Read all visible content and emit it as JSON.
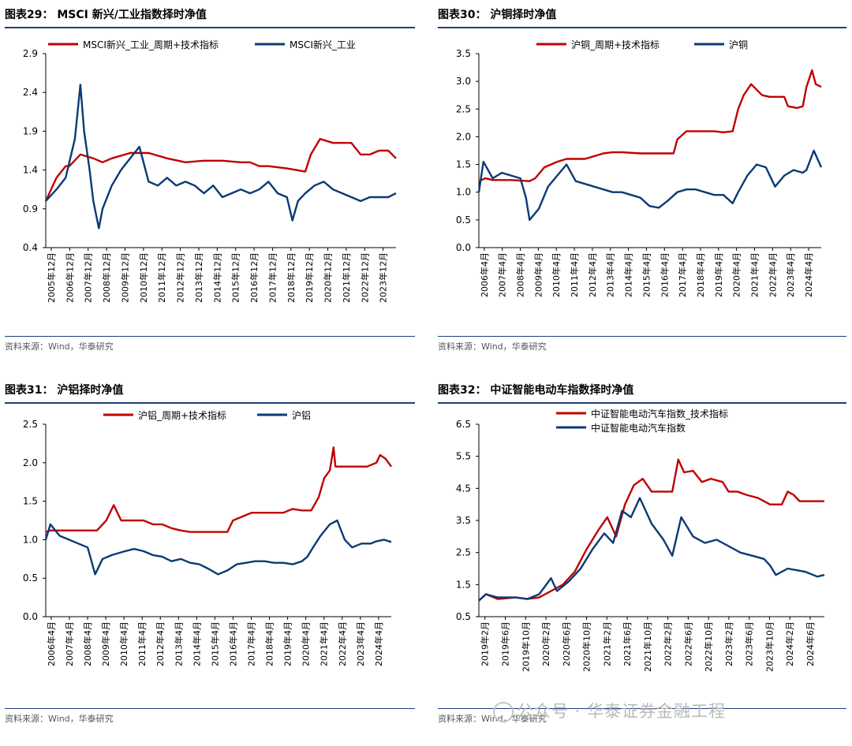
{
  "colors": {
    "red": "#c00000",
    "blue": "#0b3a75",
    "rule": "#1f3f7a"
  },
  "source_text": "资料来源：Wind，华泰研究",
  "watermark": "公众号 · 华泰证券金融工程",
  "chart_data": [
    {
      "type": "line",
      "title": "图表29：  MSCI 新兴/工业指数择时净值",
      "ylim": [
        0.4,
        2.9
      ],
      "yticks": [
        0.4,
        0.9,
        1.4,
        1.9,
        2.4,
        2.9
      ],
      "ytick_labels": [
        "0.4",
        "0.9",
        "1.4",
        "1.9",
        "2.4",
        "2.9"
      ],
      "xlim": [
        2005.92,
        2024.92
      ],
      "x_tick_labels": [
        "2005年12月",
        "2006年12月",
        "2007年12月",
        "2008年12月",
        "2009年12月",
        "2010年12月",
        "2011年12月",
        "2012年12月",
        "2013年12月",
        "2014年12月",
        "2015年12月",
        "2016年12月",
        "2017年12月",
        "2018年12月",
        "2019年12月",
        "2020年12月",
        "2021年12月",
        "2022年12月",
        "2023年12月"
      ],
      "legend": "top",
      "series": [
        {
          "name": "MSCI新兴_工业_周期+技术指标",
          "color": "red",
          "x": [
            2005.92,
            2006.5,
            2007.0,
            2007.2,
            2007.6,
            2007.8,
            2008.5,
            2009.0,
            2009.5,
            2010.5,
            2011.5,
            2012.5,
            2013.5,
            2014.5,
            2015.5,
            2016.5,
            2017.0,
            2017.5,
            2018.0,
            2019.0,
            2019.5,
            2020.0,
            2020.3,
            2020.8,
            2021.5,
            2022.5,
            2023.0,
            2023.5,
            2024.0,
            2024.5,
            2024.92
          ],
          "y": [
            1.0,
            1.3,
            1.45,
            1.45,
            1.55,
            1.6,
            1.55,
            1.5,
            1.55,
            1.62,
            1.62,
            1.55,
            1.5,
            1.52,
            1.52,
            1.5,
            1.5,
            1.45,
            1.45,
            1.42,
            1.4,
            1.38,
            1.6,
            1.8,
            1.75,
            1.75,
            1.6,
            1.6,
            1.65,
            1.65,
            1.55
          ]
        },
        {
          "name": "MSCI新兴_工业",
          "color": "blue",
          "x": [
            2005.92,
            2006.5,
            2007.0,
            2007.5,
            2007.8,
            2008.0,
            2008.3,
            2008.5,
            2008.8,
            2009.0,
            2009.5,
            2010.0,
            2010.5,
            2011.0,
            2011.5,
            2012.0,
            2012.5,
            2013.0,
            2013.5,
            2014.0,
            2014.5,
            2015.0,
            2015.5,
            2016.0,
            2016.5,
            2017.0,
            2017.5,
            2018.0,
            2018.5,
            2019.0,
            2019.3,
            2019.6,
            2020.0,
            2020.5,
            2021.0,
            2021.5,
            2022.0,
            2022.5,
            2023.0,
            2023.5,
            2024.0,
            2024.5,
            2024.92
          ],
          "y": [
            1.0,
            1.15,
            1.3,
            1.8,
            2.5,
            1.9,
            1.4,
            1.0,
            0.65,
            0.9,
            1.2,
            1.4,
            1.55,
            1.7,
            1.25,
            1.2,
            1.3,
            1.2,
            1.25,
            1.2,
            1.1,
            1.2,
            1.05,
            1.1,
            1.15,
            1.1,
            1.15,
            1.25,
            1.1,
            1.05,
            0.75,
            1.0,
            1.1,
            1.2,
            1.25,
            1.15,
            1.1,
            1.05,
            1.0,
            1.05,
            1.05,
            1.05,
            1.1
          ]
        }
      ]
    },
    {
      "type": "line",
      "title": "图表30：  沪铜择时净值",
      "ylim": [
        0.0,
        3.5
      ],
      "yticks": [
        0.0,
        0.5,
        1.0,
        1.5,
        2.0,
        2.5,
        3.0,
        3.5
      ],
      "ytick_labels": [
        "0.0",
        "0.5",
        "1.0",
        "1.5",
        "2.0",
        "2.5",
        "3.0",
        "3.5"
      ],
      "xlim": [
        2006.25,
        2024.8
      ],
      "x_tick_labels": [
        "2006年4月",
        "2007年4月",
        "2008年4月",
        "2009年4月",
        "2010年4月",
        "2011年4月",
        "2012年4月",
        "2013年4月",
        "2014年4月",
        "2015年4月",
        "2016年4月",
        "2017年4月",
        "2018年4月",
        "2019年4月",
        "2020年4月",
        "2021年4月",
        "2022年4月",
        "2023年4月",
        "2024年4月"
      ],
      "legend": "top",
      "series": [
        {
          "name": "沪铜_周期+技术指标",
          "color": "red",
          "x": [
            2006.25,
            2006.6,
            2007.0,
            2008.0,
            2009.0,
            2009.3,
            2009.8,
            2010.5,
            2011.0,
            2012.0,
            2013.0,
            2013.5,
            2014.0,
            2015.0,
            2016.0,
            2016.8,
            2017.0,
            2017.5,
            2018.0,
            2019.0,
            2019.5,
            2020.0,
            2020.3,
            2020.6,
            2021.0,
            2021.3,
            2021.6,
            2022.0,
            2022.8,
            2023.0,
            2023.5,
            2023.8,
            2024.0,
            2024.3,
            2024.5,
            2024.8
          ],
          "y": [
            1.2,
            1.25,
            1.22,
            1.22,
            1.2,
            1.25,
            1.45,
            1.55,
            1.6,
            1.6,
            1.7,
            1.72,
            1.72,
            1.7,
            1.7,
            1.7,
            1.95,
            2.1,
            2.1,
            2.1,
            2.08,
            2.1,
            2.5,
            2.75,
            2.95,
            2.85,
            2.75,
            2.72,
            2.72,
            2.55,
            2.52,
            2.55,
            2.9,
            3.2,
            2.95,
            2.9
          ]
        },
        {
          "name": "沪铜",
          "color": "blue",
          "x": [
            2006.25,
            2006.5,
            2007.0,
            2007.5,
            2008.0,
            2008.5,
            2008.8,
            2009.0,
            2009.5,
            2010.0,
            2010.5,
            2011.0,
            2011.5,
            2012.0,
            2012.5,
            2013.0,
            2013.5,
            2014.0,
            2014.5,
            2015.0,
            2015.5,
            2016.0,
            2016.5,
            2017.0,
            2017.5,
            2018.0,
            2018.5,
            2019.0,
            2019.5,
            2020.0,
            2020.3,
            2020.8,
            2021.3,
            2021.8,
            2022.3,
            2022.8,
            2023.3,
            2023.8,
            2024.0,
            2024.4,
            2024.8
          ],
          "y": [
            1.0,
            1.55,
            1.25,
            1.35,
            1.3,
            1.25,
            0.9,
            0.5,
            0.7,
            1.1,
            1.3,
            1.5,
            1.2,
            1.15,
            1.1,
            1.05,
            1.0,
            1.0,
            0.95,
            0.9,
            0.75,
            0.72,
            0.85,
            1.0,
            1.05,
            1.05,
            1.0,
            0.95,
            0.95,
            0.8,
            1.0,
            1.3,
            1.5,
            1.45,
            1.1,
            1.3,
            1.4,
            1.35,
            1.4,
            1.75,
            1.45
          ]
        }
      ]
    },
    {
      "type": "line",
      "title": "图表31：  沪铝择时净值",
      "ylim": [
        0.0,
        2.5
      ],
      "yticks": [
        0.0,
        0.5,
        1.0,
        1.5,
        2.0,
        2.5
      ],
      "ytick_labels": [
        "0.0",
        "0.5",
        "1.0",
        "1.5",
        "2.0",
        "2.5"
      ],
      "xlim": [
        2006.25,
        2024.8
      ],
      "x_tick_labels": [
        "2006年4月",
        "2007年4月",
        "2008年4月",
        "2009年4月",
        "2010年4月",
        "2011年4月",
        "2012年4月",
        "2013年4月",
        "2014年4月",
        "2015年4月",
        "2016年4月",
        "2017年4月",
        "2018年4月",
        "2019年4月",
        "2020年4月",
        "2021年4月",
        "2022年4月",
        "2023年4月",
        "2024年4月"
      ],
      "legend": "top",
      "series": [
        {
          "name": "沪铝_周期+技术指标",
          "color": "red",
          "x": [
            2006.25,
            2006.5,
            2007.0,
            2008.0,
            2009.0,
            2009.5,
            2009.9,
            2010.3,
            2010.6,
            2011.5,
            2012.0,
            2012.5,
            2013.0,
            2013.5,
            2014.0,
            2015.0,
            2016.0,
            2016.3,
            2016.8,
            2017.3,
            2018.0,
            2019.0,
            2019.5,
            2020.0,
            2020.5,
            2020.9,
            2021.2,
            2021.5,
            2021.7,
            2021.8,
            2022.3,
            2023.0,
            2023.5,
            2024.0,
            2024.2,
            2024.5,
            2024.8
          ],
          "y": [
            1.1,
            1.12,
            1.12,
            1.12,
            1.12,
            1.25,
            1.45,
            1.25,
            1.25,
            1.25,
            1.2,
            1.2,
            1.15,
            1.12,
            1.1,
            1.1,
            1.1,
            1.25,
            1.3,
            1.35,
            1.35,
            1.35,
            1.4,
            1.38,
            1.38,
            1.55,
            1.8,
            1.9,
            2.2,
            1.95,
            1.95,
            1.95,
            1.95,
            2.0,
            2.1,
            2.05,
            1.95
          ]
        },
        {
          "name": "沪铝",
          "color": "blue",
          "x": [
            2006.25,
            2006.5,
            2007.0,
            2007.5,
            2008.0,
            2008.5,
            2008.9,
            2009.3,
            2009.8,
            2010.5,
            2011.0,
            2011.5,
            2012.0,
            2012.5,
            2013.0,
            2013.5,
            2014.0,
            2014.5,
            2015.0,
            2015.5,
            2016.0,
            2016.5,
            2017.0,
            2017.5,
            2018.0,
            2018.5,
            2019.0,
            2019.5,
            2020.0,
            2020.3,
            2020.6,
            2021.0,
            2021.5,
            2021.9,
            2022.3,
            2022.7,
            2023.2,
            2023.7,
            2024.0,
            2024.4,
            2024.8
          ],
          "y": [
            1.0,
            1.2,
            1.05,
            1.0,
            0.95,
            0.9,
            0.55,
            0.75,
            0.8,
            0.85,
            0.88,
            0.85,
            0.8,
            0.78,
            0.72,
            0.75,
            0.7,
            0.68,
            0.62,
            0.55,
            0.6,
            0.68,
            0.7,
            0.72,
            0.72,
            0.7,
            0.7,
            0.68,
            0.72,
            0.78,
            0.9,
            1.05,
            1.2,
            1.25,
            1.0,
            0.9,
            0.95,
            0.95,
            0.98,
            1.0,
            0.97
          ]
        }
      ]
    },
    {
      "type": "line",
      "title": "图表32：  中证智能电动车指数择时净值",
      "ylim": [
        0.5,
        6.5
      ],
      "yticks": [
        0.5,
        1.5,
        2.5,
        3.5,
        4.5,
        5.5,
        6.5
      ],
      "ytick_labels": [
        "0.5",
        "1.5",
        "2.5",
        "3.5",
        "4.5",
        "5.5",
        "6.5"
      ],
      "xlim": [
        2019.08,
        2024.92
      ],
      "x_tick_labels": [
        "2019年2月",
        "2019年6月",
        "2019年10月",
        "2020年2月",
        "2020年6月",
        "2020年10月",
        "2021年2月",
        "2021年6月",
        "2021年10月",
        "2022年2月",
        "2022年6月",
        "2022年10月",
        "2023年2月",
        "2023年6月",
        "2023年10月",
        "2024年2月",
        "2024年6月"
      ],
      "legend": "top-left",
      "series": [
        {
          "name": "中证智能电动汽车指数_技术指标",
          "color": "red",
          "x": [
            2019.08,
            2019.2,
            2019.4,
            2019.7,
            2019.9,
            2020.1,
            2020.3,
            2020.5,
            2020.7,
            2020.9,
            2021.1,
            2021.25,
            2021.4,
            2021.55,
            2021.7,
            2021.85,
            2022.0,
            2022.2,
            2022.35,
            2022.45,
            2022.55,
            2022.7,
            2022.85,
            2023.0,
            2023.2,
            2023.3,
            2023.45,
            2023.6,
            2023.8,
            2024.0,
            2024.2,
            2024.3,
            2024.4,
            2024.5,
            2024.7,
            2024.92
          ],
          "y": [
            1.0,
            1.2,
            1.05,
            1.1,
            1.05,
            1.1,
            1.3,
            1.5,
            1.9,
            2.6,
            3.2,
            3.6,
            3.0,
            4.0,
            4.6,
            4.8,
            4.4,
            4.4,
            4.4,
            5.4,
            5.0,
            5.05,
            4.7,
            4.8,
            4.7,
            4.4,
            4.4,
            4.3,
            4.2,
            4.0,
            4.0,
            4.4,
            4.3,
            4.1,
            4.1,
            4.1
          ]
        },
        {
          "name": "中证智能电动汽车指数",
          "color": "blue",
          "x": [
            2019.08,
            2019.2,
            2019.4,
            2019.7,
            2019.9,
            2020.1,
            2020.3,
            2020.4,
            2020.6,
            2020.8,
            2021.0,
            2021.2,
            2021.35,
            2021.5,
            2021.65,
            2021.8,
            2022.0,
            2022.2,
            2022.35,
            2022.5,
            2022.7,
            2022.9,
            2023.1,
            2023.3,
            2023.5,
            2023.7,
            2023.9,
            2024.0,
            2024.1,
            2024.3,
            2024.6,
            2024.8,
            2024.92
          ],
          "y": [
            1.0,
            1.2,
            1.1,
            1.1,
            1.05,
            1.2,
            1.7,
            1.3,
            1.6,
            2.0,
            2.6,
            3.1,
            2.8,
            3.8,
            3.6,
            4.2,
            3.4,
            2.9,
            2.4,
            3.6,
            3.0,
            2.8,
            2.9,
            2.7,
            2.5,
            2.4,
            2.3,
            2.1,
            1.8,
            2.0,
            1.9,
            1.75,
            1.8
          ]
        }
      ]
    }
  ]
}
